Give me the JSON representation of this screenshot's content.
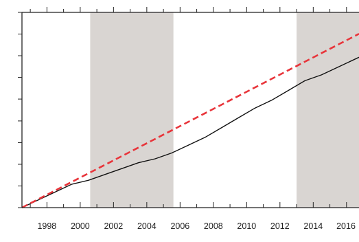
{
  "chart_data": {
    "type": "line",
    "title": "",
    "xlabel": "",
    "ylabel": "",
    "xlim": [
      1996.5,
      2016.75
    ],
    "ylim": [
      0,
      100
    ],
    "xticks": [
      1998,
      2000,
      2002,
      2004,
      2006,
      2008,
      2010,
      2012,
      2014,
      2016
    ],
    "xtick_labels": [
      "1998",
      "2000",
      "2002",
      "2004",
      "2006",
      "2008",
      "2010",
      "2012",
      "2014",
      "2016"
    ],
    "yticks": [
      0,
      11.1,
      22.2,
      33.3,
      44.4,
      55.6,
      66.7,
      77.8,
      88.9,
      100
    ],
    "shaded_periods": [
      {
        "start": 2000.6,
        "end": 2005.6
      },
      {
        "start": 2013.0,
        "end": 2016.75
      }
    ],
    "colors": {
      "actual_line": "#111111",
      "trend_line": "#e8343a",
      "shade": "#d9d5d2"
    },
    "series": [
      {
        "style": "solid",
        "x": [
          1996.5,
          1997.5,
          1998.5,
          1999.5,
          2000.5,
          2001.5,
          2002.5,
          2003.5,
          2004.5,
          2005.5,
          2006.5,
          2007.5,
          2008.5,
          2009.5,
          2010.5,
          2011.5,
          2012.5,
          2013.5,
          2014.5,
          2015.5,
          2016.75
        ],
        "y": [
          0,
          4,
          8,
          12,
          14,
          17,
          20,
          23,
          25,
          28,
          32,
          36,
          41,
          46,
          51,
          55,
          60,
          65,
          68,
          72,
          77
        ]
      },
      {
        "style": "dashed",
        "x": [
          1996.5,
          2016.75
        ],
        "y": [
          0,
          89
        ]
      }
    ]
  }
}
